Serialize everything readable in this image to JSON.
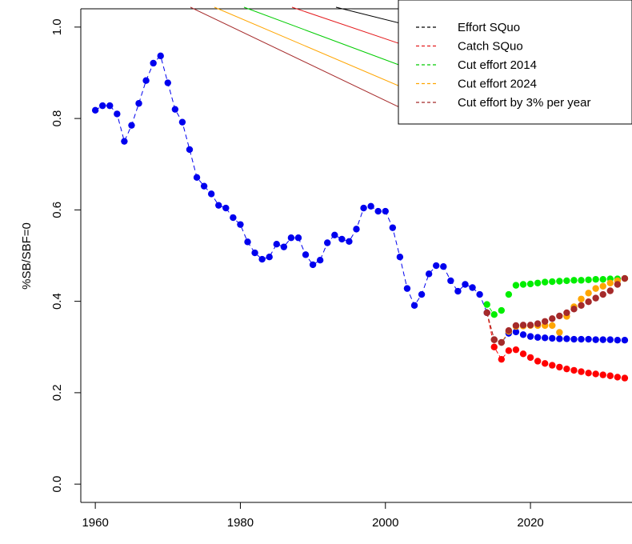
{
  "chart_data": {
    "type": "scatter",
    "title": "",
    "xlabel": "",
    "ylabel": "%SB/SBF=0",
    "xlim": [
      1958,
      2034
    ],
    "ylim": [
      -0.04,
      1.04
    ],
    "x_ticks": [
      1960,
      1980,
      2000,
      2020
    ],
    "y_ticks": [
      0.0,
      0.2,
      0.4,
      0.6,
      0.8,
      1.0
    ],
    "x_tick_labels": [
      "1960",
      "1980",
      "2000",
      "2020"
    ],
    "y_tick_labels": [
      "0.0",
      "0.2",
      "0.4",
      "0.6",
      "0.8",
      "1.0"
    ],
    "grid": false,
    "legend_position": "top-right",
    "legend": [
      {
        "label": "Effort SQuo",
        "color": "#000000"
      },
      {
        "label": "Catch SQuo",
        "color": "#e41a1c"
      },
      {
        "label": "Cut effort 2014",
        "color": "#00cc00"
      },
      {
        "label": "Cut effort 2024",
        "color": "#ffa500"
      },
      {
        "label": "Cut effort by 3% per year",
        "color": "#a52a2a"
      }
    ],
    "historical": {
      "color": "#0000ee",
      "x": [
        1960,
        1961,
        1962,
        1963,
        1964,
        1965,
        1966,
        1967,
        1968,
        1969,
        1970,
        1971,
        1972,
        1973,
        1974,
        1975,
        1976,
        1977,
        1978,
        1979,
        1980,
        1981,
        1982,
        1983,
        1984,
        1985,
        1986,
        1987,
        1988,
        1989,
        1990,
        1991,
        1992,
        1993,
        1994,
        1995,
        1996,
        1997,
        1998,
        1999,
        2000,
        2001,
        2002,
        2003,
        2004,
        2005,
        2006,
        2007,
        2008,
        2009,
        2010,
        2011,
        2012,
        2013,
        2014
      ],
      "y": [
        0.818,
        0.828,
        0.828,
        0.81,
        0.75,
        0.785,
        0.833,
        0.883,
        0.921,
        0.937,
        0.878,
        0.82,
        0.792,
        0.732,
        0.671,
        0.652,
        0.635,
        0.61,
        0.604,
        0.583,
        0.568,
        0.53,
        0.506,
        0.492,
        0.497,
        0.525,
        0.519,
        0.539,
        0.539,
        0.502,
        0.48,
        0.49,
        0.528,
        0.545,
        0.536,
        0.531,
        0.558,
        0.604,
        0.608,
        0.597,
        0.597,
        0.561,
        0.497,
        0.428,
        0.391,
        0.415,
        0.46,
        0.478,
        0.476,
        0.445,
        0.422,
        0.437,
        0.43,
        0.415,
        0.375
      ]
    },
    "series": [
      {
        "name": "Effort SQuo",
        "color": "#0000ee",
        "x": [
          2015,
          2016,
          2017,
          2018,
          2019,
          2020,
          2021,
          2022,
          2023,
          2024,
          2025,
          2026,
          2027,
          2028,
          2029,
          2030,
          2031,
          2032,
          2033
        ],
        "y": [
          0.316,
          0.31,
          0.33,
          0.333,
          0.327,
          0.323,
          0.321,
          0.32,
          0.319,
          0.318,
          0.318,
          0.317,
          0.317,
          0.317,
          0.316,
          0.316,
          0.316,
          0.315,
          0.315
        ]
      },
      {
        "name": "Catch SQuo",
        "color": "#ff0000",
        "x": [
          2015,
          2016,
          2017,
          2018,
          2019,
          2020,
          2021,
          2022,
          2023,
          2024,
          2025,
          2026,
          2027,
          2028,
          2029,
          2030,
          2031,
          2032,
          2033
        ],
        "y": [
          0.3,
          0.273,
          0.292,
          0.294,
          0.285,
          0.277,
          0.269,
          0.264,
          0.26,
          0.256,
          0.252,
          0.249,
          0.246,
          0.243,
          0.241,
          0.239,
          0.237,
          0.234,
          0.232
        ]
      },
      {
        "name": "Cut effort 2014",
        "color": "#00ee00",
        "x": [
          2014,
          2015,
          2016,
          2017,
          2018,
          2019,
          2020,
          2021,
          2022,
          2023,
          2024,
          2025,
          2026,
          2027,
          2028,
          2029,
          2030,
          2031,
          2032,
          2033
        ],
        "y": [
          0.393,
          0.371,
          0.38,
          0.415,
          0.435,
          0.437,
          0.438,
          0.44,
          0.442,
          0.443,
          0.444,
          0.445,
          0.446,
          0.446,
          0.447,
          0.448,
          0.448,
          0.449,
          0.449,
          0.45
        ]
      },
      {
        "name": "Cut effort 2024",
        "color": "#ffa500",
        "x": [
          2015,
          2016,
          2017,
          2018,
          2019,
          2020,
          2021,
          2022,
          2023,
          2024,
          2025,
          2026,
          2027,
          2028,
          2029,
          2030,
          2031,
          2032,
          2033
        ],
        "y": [
          0.316,
          0.31,
          0.334,
          0.345,
          0.346,
          0.347,
          0.347,
          0.347,
          0.347,
          0.332,
          0.367,
          0.388,
          0.405,
          0.418,
          0.428,
          0.433,
          0.44,
          0.445,
          0.45
        ]
      },
      {
        "name": "Cut effort by 3% per year",
        "color": "#a52a2a",
        "x": [
          2014,
          2015,
          2016,
          2017,
          2018,
          2019,
          2020,
          2021,
          2022,
          2023,
          2024,
          2025,
          2026,
          2027,
          2028,
          2029,
          2030,
          2031,
          2032,
          2033
        ],
        "y": [
          0.375,
          0.316,
          0.31,
          0.336,
          0.347,
          0.348,
          0.348,
          0.351,
          0.356,
          0.362,
          0.368,
          0.375,
          0.383,
          0.391,
          0.399,
          0.407,
          0.415,
          0.423,
          0.437,
          0.45
        ]
      }
    ]
  }
}
